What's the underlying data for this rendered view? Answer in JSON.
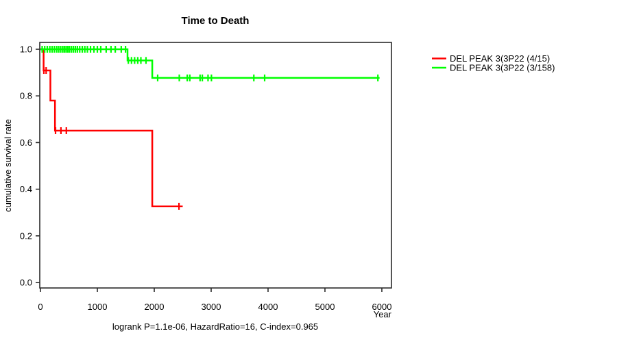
{
  "chart_data": {
    "type": "line",
    "subtype": "kaplan-meier-step",
    "title": "Time to Death",
    "xlabel": "Year",
    "ylabel": "cumulative survival rate",
    "annotation": "logrank P=1.1e-06, HazardRatio=16, C-index=0.965",
    "xlim": [
      0,
      6170
    ],
    "ylim": [
      0.0,
      1.03
    ],
    "xticks": [
      0,
      1000,
      2000,
      3000,
      4000,
      5000,
      6000
    ],
    "ytick_labels": [
      "0.0",
      "0.2",
      "0.4",
      "0.6",
      "0.8",
      "1.0"
    ],
    "yticks": [
      0.0,
      0.2,
      0.4,
      0.6,
      0.8,
      1.0
    ],
    "grid": false,
    "legend_position": "right-outside",
    "series": [
      {
        "name": "DEL PEAK  3(3P22 (4/15)",
        "color": "#ff0000",
        "points": [
          [
            0,
            1.0
          ],
          [
            55,
            1.0
          ],
          [
            55,
            0.909
          ],
          [
            175,
            0.909
          ],
          [
            175,
            0.78
          ],
          [
            255,
            0.78
          ],
          [
            255,
            0.651
          ],
          [
            1965,
            0.651
          ],
          [
            1965,
            0.326
          ],
          [
            2500,
            0.326
          ]
        ],
        "censor_marks": [
          [
            60,
            0.909
          ],
          [
            100,
            0.909
          ],
          [
            265,
            0.651
          ],
          [
            360,
            0.651
          ],
          [
            455,
            0.651
          ],
          [
            2435,
            0.326
          ]
        ]
      },
      {
        "name": "DEL PEAK  3(3P22 (3/158)",
        "color": "#00ff00",
        "points": [
          [
            0,
            1.0
          ],
          [
            1530,
            1.0
          ],
          [
            1530,
            0.952
          ],
          [
            1965,
            0.952
          ],
          [
            1965,
            0.877
          ],
          [
            5960,
            0.877
          ]
        ],
        "censor_marks": [
          [
            30,
            1.0
          ],
          [
            75,
            1.0
          ],
          [
            120,
            1.0
          ],
          [
            165,
            1.0
          ],
          [
            205,
            1.0
          ],
          [
            245,
            1.0
          ],
          [
            285,
            1.0
          ],
          [
            320,
            1.0
          ],
          [
            355,
            1.0
          ],
          [
            390,
            1.0
          ],
          [
            420,
            1.0
          ],
          [
            450,
            1.0
          ],
          [
            480,
            1.0
          ],
          [
            510,
            1.0
          ],
          [
            545,
            1.0
          ],
          [
            580,
            1.0
          ],
          [
            615,
            1.0
          ],
          [
            650,
            1.0
          ],
          [
            690,
            1.0
          ],
          [
            735,
            1.0
          ],
          [
            780,
            1.0
          ],
          [
            825,
            1.0
          ],
          [
            880,
            1.0
          ],
          [
            940,
            1.0
          ],
          [
            1000,
            1.0
          ],
          [
            1060,
            1.0
          ],
          [
            1155,
            1.0
          ],
          [
            1240,
            1.0
          ],
          [
            1315,
            1.0
          ],
          [
            1420,
            1.0
          ],
          [
            1495,
            1.0
          ],
          [
            1545,
            0.952
          ],
          [
            1600,
            0.952
          ],
          [
            1655,
            0.952
          ],
          [
            1710,
            0.952
          ],
          [
            1765,
            0.952
          ],
          [
            1855,
            0.952
          ],
          [
            2060,
            0.877
          ],
          [
            2440,
            0.877
          ],
          [
            2580,
            0.877
          ],
          [
            2625,
            0.877
          ],
          [
            2805,
            0.877
          ],
          [
            2845,
            0.877
          ],
          [
            2945,
            0.877
          ],
          [
            3005,
            0.877
          ],
          [
            3750,
            0.877
          ],
          [
            3940,
            0.877
          ],
          [
            5930,
            0.877
          ]
        ]
      }
    ]
  }
}
